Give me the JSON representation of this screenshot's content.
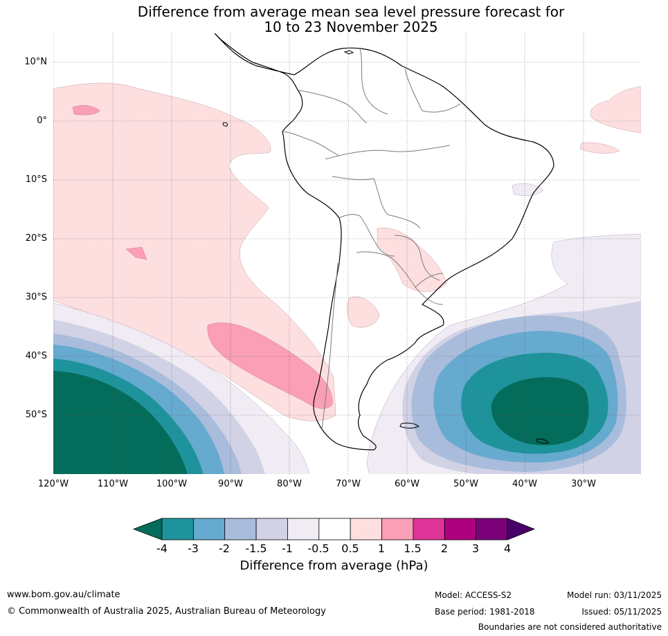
{
  "title": {
    "line1": "Difference from average mean sea level pressure forecast for",
    "line2": "10 to 23 November 2025"
  },
  "map": {
    "region": "South America and adjacent oceans",
    "lat_labels": [
      "10°N",
      "0°",
      "10°S",
      "20°S",
      "30°S",
      "40°S",
      "50°S"
    ],
    "lon_labels": [
      "120°W",
      "110°W",
      "100°W",
      "90°W",
      "80°W",
      "70°W",
      "60°W",
      "50°W",
      "40°W",
      "30°W"
    ],
    "features": [
      {
        "name": "strong negative anomaly southwest Pacific",
        "level": "< -4"
      },
      {
        "name": "strong negative anomaly southwest Atlantic",
        "level": "< -4"
      },
      {
        "name": "positive anomaly off Chile",
        "level": "1 to 1.5"
      },
      {
        "name": "weak positive anomaly eastern tropical Pacific",
        "level": "0.5 to 1"
      }
    ]
  },
  "colorbar": {
    "ticks": [
      "-4",
      "-3",
      "-2",
      "-1.5",
      "-1",
      "-0.5",
      "0.5",
      "1",
      "1.5",
      "2",
      "3",
      "4"
    ],
    "colors": [
      "#046c5a",
      "#1f939c",
      "#66aacf",
      "#a9bcdb",
      "#d1d2e6",
      "#f1ecf4",
      "#ffffff",
      "#fddfe0",
      "#fa9fb5",
      "#df3497",
      "#ad017e",
      "#7a0177",
      "#49006a"
    ],
    "label": "Difference from average (hPa)"
  },
  "footer": {
    "website": "www.bom.gov.au/climate",
    "copyright": "© Commonwealth of Australia 2025, Australian Bureau of Meteorology",
    "model": "Model: ACCESS-S2",
    "base_period": "Base period: 1981-2018",
    "model_run": "Model run: 03/11/2025",
    "issued": "Issued: 05/11/2025",
    "disclaimer": "Boundaries are not considered authoritative"
  }
}
